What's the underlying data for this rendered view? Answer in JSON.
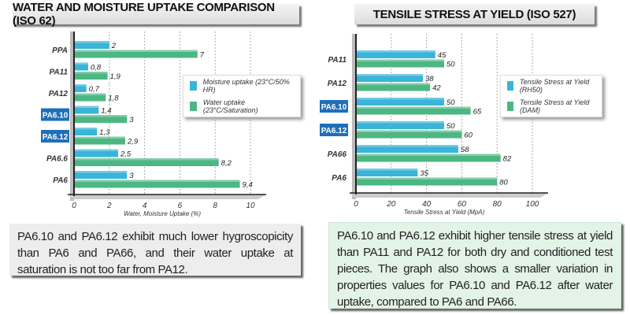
{
  "chart_data": [
    {
      "type": "bar",
      "title": "WATER AND MOISTURE UPTAKE COMPARISON (ISO 62)",
      "xlabel": "Water, Moisture Uptake (%)",
      "ylabel": "",
      "categories": [
        "PPA",
        "PA11",
        "PA12",
        "PA6.10",
        "PA6.12",
        "PA6.6",
        "PA6"
      ],
      "highlighted": [
        "PA6.10",
        "PA6.12"
      ],
      "series": [
        {
          "name": "Moisture uptake (23°C/50% HR)",
          "values": [
            2,
            0.8,
            0.7,
            1.4,
            1.3,
            2.5,
            3
          ],
          "labels": [
            "2",
            "0,8",
            "0,7",
            "1,4",
            "1,3",
            "2,5",
            "3"
          ],
          "color": "#3ab4d8"
        },
        {
          "name": "Water uptake (23°C/Saturation)",
          "values": [
            7,
            1.9,
            1.8,
            3,
            2.9,
            8.2,
            9.4
          ],
          "labels": [
            "7",
            "1,9",
            "1,8",
            "3",
            "2,9",
            "8,2",
            "9,4"
          ],
          "color": "#4cb782"
        }
      ],
      "xlim": [
        0,
        10
      ],
      "ticks": [
        "0",
        "2",
        "4",
        "6",
        "8",
        "10"
      ],
      "grid": true,
      "legend": "right"
    },
    {
      "type": "bar",
      "title": "TENSILE STRESS AT YIELD (ISO 527)",
      "xlabel": "Tensile Stress at Yield (MpA)",
      "ylabel": "",
      "categories": [
        "PA11",
        "PA12",
        "PA6.10",
        "PA6.12",
        "PA66",
        "PA6"
      ],
      "highlighted": [
        "PA6.10",
        "PA6.12"
      ],
      "series": [
        {
          "name": "Tensile Stress at Yield (RH50)",
          "values": [
            45,
            38,
            50,
            50,
            58,
            35
          ],
          "labels": [
            "45",
            "38",
            "50",
            "50",
            "58",
            "35"
          ],
          "color": "#3ab4d8"
        },
        {
          "name": "Tensile Stress at Yield (DAM)",
          "values": [
            50,
            42,
            65,
            60,
            82,
            80
          ],
          "labels": [
            "50",
            "42",
            "65",
            "60",
            "82",
            "80"
          ],
          "color": "#4cb782"
        }
      ],
      "xlim": [
        0,
        100
      ],
      "ticks": [
        "0",
        "20",
        "40",
        "60",
        "80",
        "100"
      ],
      "grid": true,
      "legend": "right"
    }
  ],
  "notes": [
    "PA6.10 and PA6.12 exhibit much lower hygroscopicity than PA6 and PA66, and their water uptake at saturation is not too far from PA12.",
    "PA6.10 and PA6.12 exhibit higher tensile stress at yield than PA11 and PA12 for both dry and conditioned test pieces. The graph also shows a smaller variation in properties values for PA6.10 and PA6.12 after water uptake, compared to PA6 and PA66."
  ],
  "colors": {
    "highlight": "#1f6fb8",
    "note_left_bg": "#ededed",
    "note_right_bg": "#e3f3e6"
  }
}
